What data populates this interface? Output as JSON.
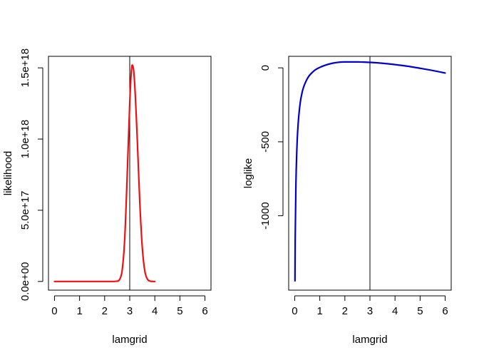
{
  "chart_data": [
    {
      "type": "line",
      "xlabel": "lamgrid",
      "ylabel": "likelihood",
      "xlim": [
        -0.24,
        6.24
      ],
      "ylim": [
        -6.1e+16,
        1.581e+18
      ],
      "xticks": [
        0,
        1,
        2,
        3,
        4,
        5,
        6
      ],
      "xtick_labels": [
        "0",
        "1",
        "2",
        "3",
        "4",
        "5",
        "6"
      ],
      "yticks": [
        0,
        5e+17,
        1e+18,
        1.5e+18
      ],
      "ytick_labels": [
        "0.0e+00",
        "5.0e+17",
        "1.0e+18",
        "1.5e+18"
      ],
      "vline": 3,
      "line_color": "#ee1111",
      "series": [
        {
          "color": "#ee1111",
          "x": [
            0,
            0.5,
            1,
            1.5,
            2,
            2.3,
            2.5,
            2.6,
            2.7,
            2.8,
            2.9,
            3.0,
            3.05,
            3.1,
            3.15,
            3.2,
            3.3,
            3.4,
            3.5,
            3.6,
            3.7,
            3.8,
            3.9,
            4.0
          ],
          "y": [
            0,
            0,
            0,
            0,
            0,
            0,
            2000000000000000.0,
            1.5e+16,
            8e+16,
            3e+17,
            7.5e+17,
            1.25e+18,
            1.44e+18,
            1.52e+18,
            1.49e+18,
            1.38e+18,
            1e+18,
            5.6e+17,
            2.4e+17,
            7.5e+16,
            1.8e+16,
            3000000000000000.0,
            300000000000000.0,
            0
          ]
        }
      ]
    },
    {
      "type": "line",
      "xlabel": "lamgrid",
      "ylabel": "loglike",
      "xlim": [
        -0.24,
        6.24
      ],
      "ylim": [
        -1503,
        78
      ],
      "xticks": [
        0,
        1,
        2,
        3,
        4,
        5,
        6
      ],
      "xtick_labels": [
        "0",
        "1",
        "2",
        "3",
        "4",
        "5",
        "6"
      ],
      "yticks": [
        -1000,
        -500,
        0
      ],
      "ytick_labels": [
        "-1000",
        "-500",
        "0"
      ],
      "vline": 3,
      "line_color": "#0000cc",
      "series": [
        {
          "color": "#0000cc",
          "x": [
            0.01,
            0.02,
            0.05,
            0.1,
            0.2,
            0.3,
            0.5,
            0.75,
            1,
            1.5,
            2,
            2.5,
            3,
            3.5,
            4,
            4.5,
            5,
            5.5,
            6
          ],
          "y": [
            -1440,
            -1155,
            -775,
            -490,
            -263,
            -163,
            -74,
            -23,
            3,
            31,
            40,
            40,
            37,
            31,
            22,
            11,
            -3,
            -18,
            -35
          ]
        }
      ]
    }
  ]
}
